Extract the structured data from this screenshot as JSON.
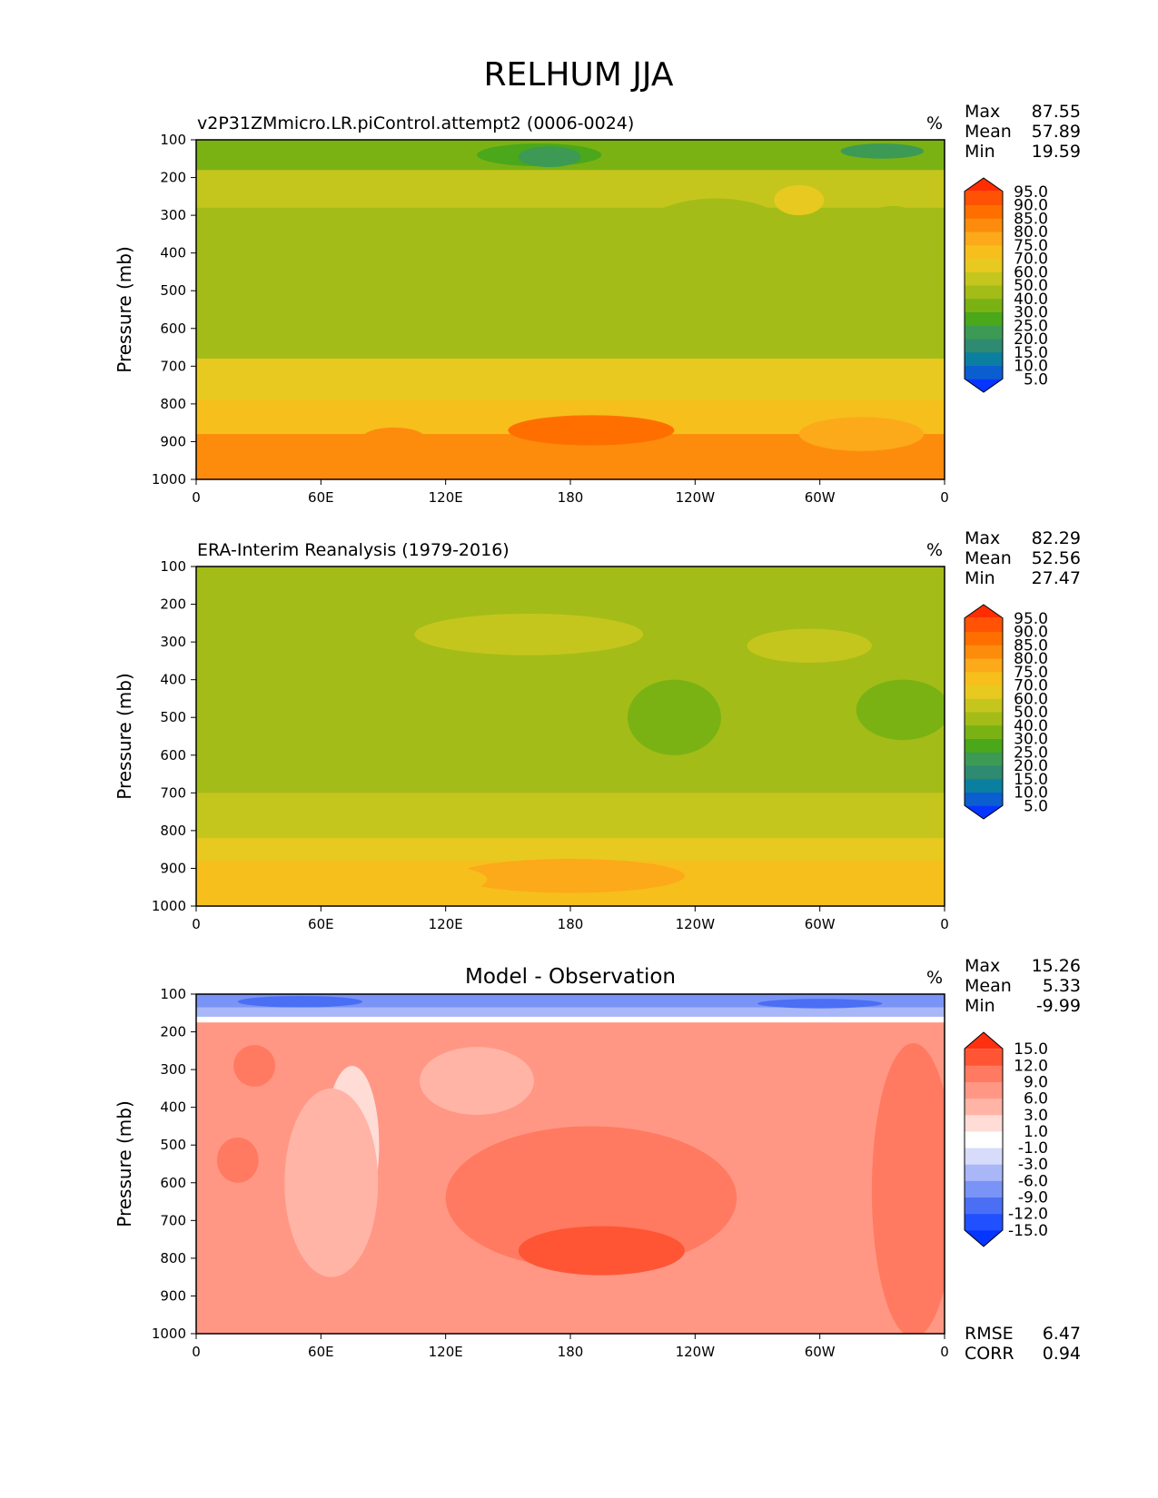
{
  "figure": {
    "title": "RELHUM JJA"
  },
  "chart_data": [
    {
      "type": "heatmap",
      "title": "v2P31ZMmicro.LR.piControl.attempt2 (0006-0024)",
      "units": "%",
      "xlabel": "",
      "ylabel": "Pressure (mb)",
      "xticks": [
        "0",
        "60E",
        "120E",
        "180",
        "120W",
        "60W",
        "0"
      ],
      "xlim": [
        0,
        360
      ],
      "yticks": [
        "100",
        "200",
        "300",
        "400",
        "500",
        "600",
        "700",
        "800",
        "900",
        "1000"
      ],
      "ylim": [
        1000,
        100
      ],
      "stats": [
        {
          "label": "Max",
          "value": "87.55"
        },
        {
          "label": "Mean",
          "value": "57.89"
        },
        {
          "label": "Min",
          "value": "19.59"
        }
      ],
      "levels": [
        "95.0",
        "90.0",
        "85.0",
        "80.0",
        "75.0",
        "70.0",
        "60.0",
        "50.0",
        "40.0",
        "30.0",
        "25.0",
        "20.0",
        "15.0",
        "10.0",
        "5.0"
      ],
      "level_values": [
        5,
        10,
        15,
        20,
        25,
        30,
        40,
        50,
        60,
        70,
        75,
        80,
        85,
        90,
        95
      ],
      "colors": [
        "#0535ff",
        "#0b5ed0",
        "#0a7fa0",
        "#2e8a70",
        "#3c9a55",
        "#4aa81a",
        "#7ab214",
        "#a4bc18",
        "#c5c61d",
        "#e8c920",
        "#f6bf1c",
        "#fca91a",
        "#fd8c0d",
        "#ff6f00",
        "#ff5204",
        "#ff2d00"
      ],
      "bands": [
        {
          "p": [
            100,
            180
          ],
          "value": 34
        },
        {
          "p": [
            180,
            280
          ],
          "value": 55
        },
        {
          "p": [
            280,
            680
          ],
          "value": 49
        },
        {
          "p": [
            680,
            790
          ],
          "value": 62
        },
        {
          "p": [
            790,
            880
          ],
          "value": 73
        },
        {
          "p": [
            880,
            1000
          ],
          "value": 80
        }
      ],
      "features": [
        {
          "lon": 30,
          "p": 480,
          "w": 80,
          "h": 330,
          "value": 46
        },
        {
          "lon": 165,
          "p": 140,
          "w": 60,
          "h": 60,
          "value": 28
        },
        {
          "lon": 250,
          "p": 420,
          "w": 95,
          "h": 330,
          "value": 45
        },
        {
          "lon": 335,
          "p": 440,
          "w": 50,
          "h": 330,
          "value": 45
        },
        {
          "lon": 290,
          "p": 260,
          "w": 24,
          "h": 80,
          "value": 67
        },
        {
          "lon": 170,
          "p": 145,
          "w": 30,
          "h": 55,
          "value": 24
        },
        {
          "lon": 330,
          "p": 130,
          "w": 40,
          "h": 40,
          "value": 22
        },
        {
          "lon": 190,
          "p": 870,
          "w": 80,
          "h": 80,
          "value": 86
        },
        {
          "lon": 95,
          "p": 890,
          "w": 30,
          "h": 55,
          "value": 84
        },
        {
          "lon": 320,
          "p": 880,
          "w": 60,
          "h": 90,
          "value": 79
        }
      ]
    },
    {
      "type": "heatmap",
      "title": "ERA-Interim Reanalysis (1979-2016)",
      "units": "%",
      "xlabel": "",
      "ylabel": "Pressure (mb)",
      "xticks": [
        "0",
        "60E",
        "120E",
        "180",
        "120W",
        "60W",
        "0"
      ],
      "xlim": [
        0,
        360
      ],
      "yticks": [
        "100",
        "200",
        "300",
        "400",
        "500",
        "600",
        "700",
        "800",
        "900",
        "1000"
      ],
      "ylim": [
        1000,
        100
      ],
      "stats": [
        {
          "label": "Max",
          "value": "82.29"
        },
        {
          "label": "Mean",
          "value": "52.56"
        },
        {
          "label": "Min",
          "value": "27.47"
        }
      ],
      "levels": [
        "95.0",
        "90.0",
        "85.0",
        "80.0",
        "75.0",
        "70.0",
        "60.0",
        "50.0",
        "40.0",
        "30.0",
        "25.0",
        "20.0",
        "15.0",
        "10.0",
        "5.0"
      ],
      "level_values": [
        5,
        10,
        15,
        20,
        25,
        30,
        40,
        50,
        60,
        70,
        75,
        80,
        85,
        90,
        95
      ],
      "colors": [
        "#0535ff",
        "#0b5ed0",
        "#0a7fa0",
        "#2e8a70",
        "#3c9a55",
        "#4aa81a",
        "#7ab214",
        "#a4bc18",
        "#c5c61d",
        "#e8c920",
        "#f6bf1c",
        "#fca91a",
        "#fd8c0d",
        "#ff6f00",
        "#ff5204",
        "#ff2d00"
      ],
      "bands": [
        {
          "p": [
            100,
            200
          ],
          "value": 42
        },
        {
          "p": [
            200,
            700
          ],
          "value": 47
        },
        {
          "p": [
            700,
            820
          ],
          "value": 52
        },
        {
          "p": [
            820,
            880
          ],
          "value": 63
        },
        {
          "p": [
            880,
            1000
          ],
          "value": 71
        }
      ],
      "features": [
        {
          "lon": 25,
          "p": 470,
          "w": 70,
          "h": 340,
          "value": 44
        },
        {
          "lon": 170,
          "p": 400,
          "w": 120,
          "h": 300,
          "value": 45
        },
        {
          "lon": 230,
          "p": 500,
          "w": 45,
          "h": 200,
          "value": 36
        },
        {
          "lon": 340,
          "p": 480,
          "w": 45,
          "h": 160,
          "value": 36
        },
        {
          "lon": 160,
          "p": 280,
          "w": 110,
          "h": 110,
          "value": 54
        },
        {
          "lon": 295,
          "p": 310,
          "w": 60,
          "h": 90,
          "value": 53
        },
        {
          "lon": 40,
          "p": 140,
          "w": 90,
          "h": 80,
          "value": 43
        },
        {
          "lon": 330,
          "p": 150,
          "w": 70,
          "h": 90,
          "value": 41
        },
        {
          "lon": 180,
          "p": 920,
          "w": 110,
          "h": 90,
          "value": 77
        },
        {
          "lon": 100,
          "p": 930,
          "w": 80,
          "h": 90,
          "value": 73
        }
      ]
    },
    {
      "type": "heatmap",
      "title": "Model - Observation",
      "units": "%",
      "xlabel": "",
      "ylabel": "Pressure (mb)",
      "xticks": [
        "0",
        "60E",
        "120E",
        "180",
        "120W",
        "60W",
        "0"
      ],
      "xlim": [
        0,
        360
      ],
      "yticks": [
        "100",
        "200",
        "300",
        "400",
        "500",
        "600",
        "700",
        "800",
        "900",
        "1000"
      ],
      "ylim": [
        1000,
        100
      ],
      "stats": [
        {
          "label": "Max",
          "value": "15.26"
        },
        {
          "label": "Mean",
          "value": "5.33"
        },
        {
          "label": "Min",
          "value": "-9.99"
        }
      ],
      "levels": [
        "15.0",
        "12.0",
        "9.0",
        "6.0",
        "3.0",
        "1.0",
        "-1.0",
        "-3.0",
        "-6.0",
        "-9.0",
        "-12.0",
        "-15.0"
      ],
      "level_values": [
        -15,
        -12,
        -9,
        -6,
        -3,
        -1,
        1,
        3,
        6,
        9,
        12,
        15
      ],
      "colors": [
        "#0535ff",
        "#2050ff",
        "#4a6ff5",
        "#7a93f6",
        "#a9b7f8",
        "#d7dcfb",
        "#ffffff",
        "#ffdcd6",
        "#ffb4a6",
        "#ff9784",
        "#ff7a60",
        "#ff5535",
        "#ff3010"
      ],
      "bands": [
        {
          "p": [
            100,
            135
          ],
          "value": -7
        },
        {
          "p": [
            135,
            160
          ],
          "value": -4
        },
        {
          "p": [
            160,
            175
          ],
          "value": 0
        },
        {
          "p": [
            175,
            1000
          ],
          "value": 8
        }
      ],
      "features": [
        {
          "lon": 75,
          "p": 500,
          "w": 26,
          "h": 420,
          "value": 2
        },
        {
          "lon": 65,
          "p": 600,
          "w": 45,
          "h": 500,
          "value": 4
        },
        {
          "lon": 135,
          "p": 330,
          "w": 55,
          "h": 180,
          "value": 4
        },
        {
          "lon": 190,
          "p": 640,
          "w": 140,
          "h": 380,
          "value": 10
        },
        {
          "lon": 195,
          "p": 780,
          "w": 80,
          "h": 130,
          "value": 13
        },
        {
          "lon": 270,
          "p": 380,
          "w": 80,
          "h": 200,
          "value": 7
        },
        {
          "lon": 310,
          "p": 650,
          "w": 30,
          "h": 450,
          "value": 6
        },
        {
          "lon": 50,
          "p": 120,
          "w": 60,
          "h": 30,
          "value": -10
        },
        {
          "lon": 300,
          "p": 125,
          "w": 60,
          "h": 25,
          "value": -10
        },
        {
          "lon": 28,
          "p": 290,
          "w": 20,
          "h": 110,
          "value": 11
        },
        {
          "lon": 20,
          "p": 540,
          "w": 20,
          "h": 120,
          "value": 11
        },
        {
          "lon": 345,
          "p": 620,
          "w": 40,
          "h": 780,
          "value": 10
        }
      ],
      "metrics": [
        {
          "label": "RMSE",
          "value": "6.47"
        },
        {
          "label": "CORR",
          "value": "0.94"
        }
      ]
    }
  ]
}
